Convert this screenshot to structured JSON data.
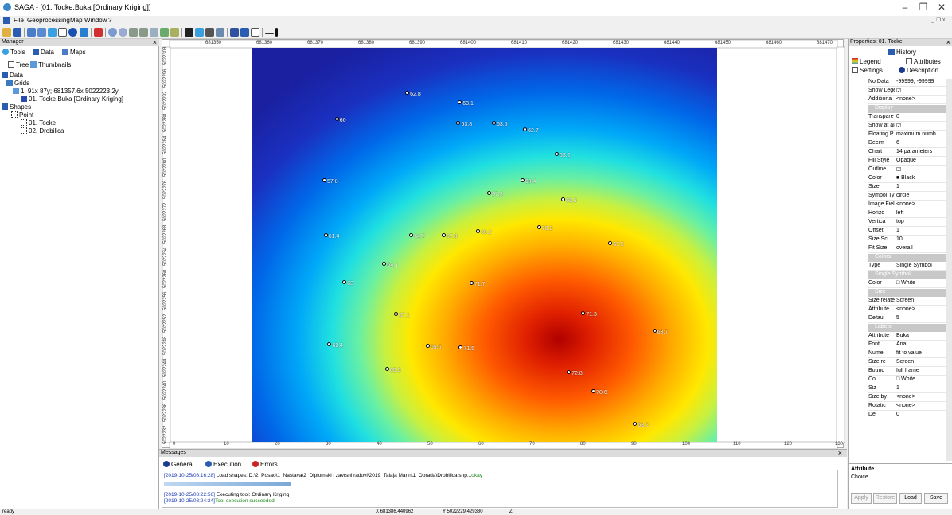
{
  "window": {
    "title": "SAGA - [01. Tocke.Buka [Ordinary Kriging]]",
    "controls": {
      "minimize": "–",
      "maximize": "❐",
      "close": "✕"
    },
    "mdi_controls": "_ ❐ x"
  },
  "menu": [
    "File",
    "Geoprocessing",
    "Map",
    "Window",
    "?"
  ],
  "manager": {
    "title": "Manager",
    "close": "×",
    "tabs": [
      "Tools",
      "Data",
      "Maps"
    ],
    "subtabs": [
      "Tree",
      "Thumbnails"
    ],
    "tree": [
      "Data",
      "Grids",
      "1; 91x 87y; 681357.6x 5022223.2y",
      "01. Tocke.Buka [Ordinary Kriging]",
      "Shapes",
      "Point",
      "01. Tocke",
      "02. Drobilica"
    ]
  },
  "map": {
    "top_ticks": [
      "681350",
      "681360",
      "681370",
      "681380",
      "681390",
      "681400",
      "681410",
      "681420",
      "681430",
      "681440",
      "681450",
      "681460",
      "681470"
    ],
    "left_ticks": [
      "5022308",
      "5022296",
      "5022292",
      "5022288",
      "5022284",
      "5022280",
      "5022276",
      "5022272",
      "5022268",
      "5022264",
      "5022260",
      "5022256",
      "5022252",
      "5022248",
      "5022244",
      "5022240",
      "5022236",
      "5022232"
    ],
    "bottom_ticks": [
      "0",
      "10",
      "20",
      "30",
      "40",
      "50",
      "60",
      "70",
      "80",
      "90",
      "100",
      "110",
      "120",
      "130"
    ],
    "points": [
      {
        "label": "62.8",
        "x": 33.7,
        "y": 12.0
      },
      {
        "label": "63.1",
        "x": 45.0,
        "y": 14.4
      },
      {
        "label": "60",
        "x": 18.6,
        "y": 18.6
      },
      {
        "label": "63.8",
        "x": 44.7,
        "y": 19.6
      },
      {
        "label": "63.5",
        "x": 52.3,
        "y": 19.6
      },
      {
        "label": "62.7",
        "x": 59.0,
        "y": 21.3
      },
      {
        "label": "63.2",
        "x": 65.8,
        "y": 27.4
      },
      {
        "label": "57.8",
        "x": 15.9,
        "y": 34.1
      },
      {
        "label": "63.4",
        "x": 58.4,
        "y": 34.1
      },
      {
        "label": "67.3",
        "x": 51.3,
        "y": 37.3
      },
      {
        "label": "66.3",
        "x": 67.2,
        "y": 39.0
      },
      {
        "label": "61.4",
        "x": 16.2,
        "y": 48.1
      },
      {
        "label": "64.7",
        "x": 34.6,
        "y": 48.1
      },
      {
        "label": "67.3",
        "x": 41.5,
        "y": 48.1
      },
      {
        "label": "69.2",
        "x": 48.9,
        "y": 47.1
      },
      {
        "label": "70.2",
        "x": 62.0,
        "y": 46.0
      },
      {
        "label": "67.5",
        "x": 77.3,
        "y": 50.0
      },
      {
        "label": "64.1",
        "x": 28.8,
        "y": 55.4
      },
      {
        "label": "63",
        "x": 20.2,
        "y": 60.1
      },
      {
        "label": "71.7",
        "x": 47.5,
        "y": 60.3
      },
      {
        "label": "67.1",
        "x": 31.3,
        "y": 68.0
      },
      {
        "label": "71.3",
        "x": 71.5,
        "y": 67.8
      },
      {
        "label": "63.7",
        "x": 86.8,
        "y": 72.3
      },
      {
        "label": "62.4",
        "x": 17.0,
        "y": 75.8
      },
      {
        "label": "69.5",
        "x": 38.1,
        "y": 76.2
      },
      {
        "label": "71.5",
        "x": 45.2,
        "y": 76.6
      },
      {
        "label": "65.5",
        "x": 29.4,
        "y": 82.0
      },
      {
        "label": "72.8",
        "x": 68.4,
        "y": 82.9
      },
      {
        "label": "70.6",
        "x": 73.7,
        "y": 87.7
      },
      {
        "label": "63.2",
        "x": 82.6,
        "y": 96.0
      }
    ]
  },
  "messages": {
    "title": "Messages",
    "close": "×",
    "tabs": [
      "General",
      "Execution",
      "Errors"
    ],
    "log": [
      {
        "time": "[2019-10-25/08:16:28]",
        "text": " Load shapes: D:\\2_Posao\\1_Nastava\\2_Diplomski i zavrsni radovi\\2019_Talaja Marin\\1_Obrada\\Drobilica.shp...",
        "status": "okay"
      },
      {
        "time": "[2019-10-25/08:22:56]",
        "text": " Executing tool: Ordinary Kriging",
        "status": ""
      },
      {
        "time": "[2019-10-25/08:24:24]",
        "text": "",
        "status": "Tool execution succeeded"
      }
    ]
  },
  "properties": {
    "title": "Properties: 01. Tocke",
    "close": "×",
    "tabs": [
      "History",
      "Legend",
      "Attributes",
      "Settings",
      "Description"
    ],
    "rows": [
      {
        "k": "No Data",
        "v": "-99999; -99999"
      },
      {
        "k": "Show Lege",
        "v": "☑"
      },
      {
        "k": "Additiona",
        "v": "<none>"
      },
      {
        "cat": "Display"
      },
      {
        "k": "Transpare",
        "v": "0"
      },
      {
        "k": "Show at al",
        "v": "☑"
      },
      {
        "k": "Floating P",
        "v": "maximum numb"
      },
      {
        "k": "Decim",
        "v": "6"
      },
      {
        "k": "Chart",
        "v": "14 parameters"
      },
      {
        "k": "Fill Style",
        "v": "Opaque"
      },
      {
        "k": "Outline",
        "v": "☑"
      },
      {
        "k": "Color",
        "v": "■ Black"
      },
      {
        "k": "Size",
        "v": "1"
      },
      {
        "k": "Symbol Ty",
        "v": "circle"
      },
      {
        "k": "Image Fiel",
        "v": "<none>"
      },
      {
        "k": "Horizo",
        "v": "left"
      },
      {
        "k": "Vertica",
        "v": "top"
      },
      {
        "k": "Offset",
        "v": "1"
      },
      {
        "k": "Size Sc",
        "v": "10"
      },
      {
        "k": "Fit Size",
        "v": "overall"
      },
      {
        "cat": "Colors"
      },
      {
        "k": "Type",
        "v": "Single Symbol"
      },
      {
        "cat": "Single Symbol"
      },
      {
        "k": "Color",
        "v": "□ White"
      },
      {
        "cat": "Size"
      },
      {
        "k": "Size relate",
        "v": "Screen"
      },
      {
        "k": "Attribute",
        "v": "<none>"
      },
      {
        "k": "Defaul",
        "v": "5"
      },
      {
        "cat": "Labels"
      },
      {
        "k": "Attribute",
        "v": "Buka"
      },
      {
        "k": "Font",
        "v": "Arial"
      },
      {
        "k": "Nume",
        "v": "fit to value"
      },
      {
        "k": "Size re",
        "v": "Screen"
      },
      {
        "k": "Bound",
        "v": "full frame"
      },
      {
        "k": "Co",
        "v": "□ White"
      },
      {
        "k": "Siz",
        "v": "1"
      },
      {
        "k": "Size by",
        "v": "<none>"
      },
      {
        "k": "Rotatic",
        "v": "<none>"
      },
      {
        "k": "De",
        "v": "0"
      }
    ],
    "info_title": "Attribute",
    "info_text": "Choice",
    "buttons": [
      "Apply",
      "Restore",
      "Load",
      "Save"
    ]
  },
  "status": {
    "ready": "ready",
    "x": "X 681386.440962",
    "y": "Y 5022229.429380",
    "z": "Z"
  }
}
